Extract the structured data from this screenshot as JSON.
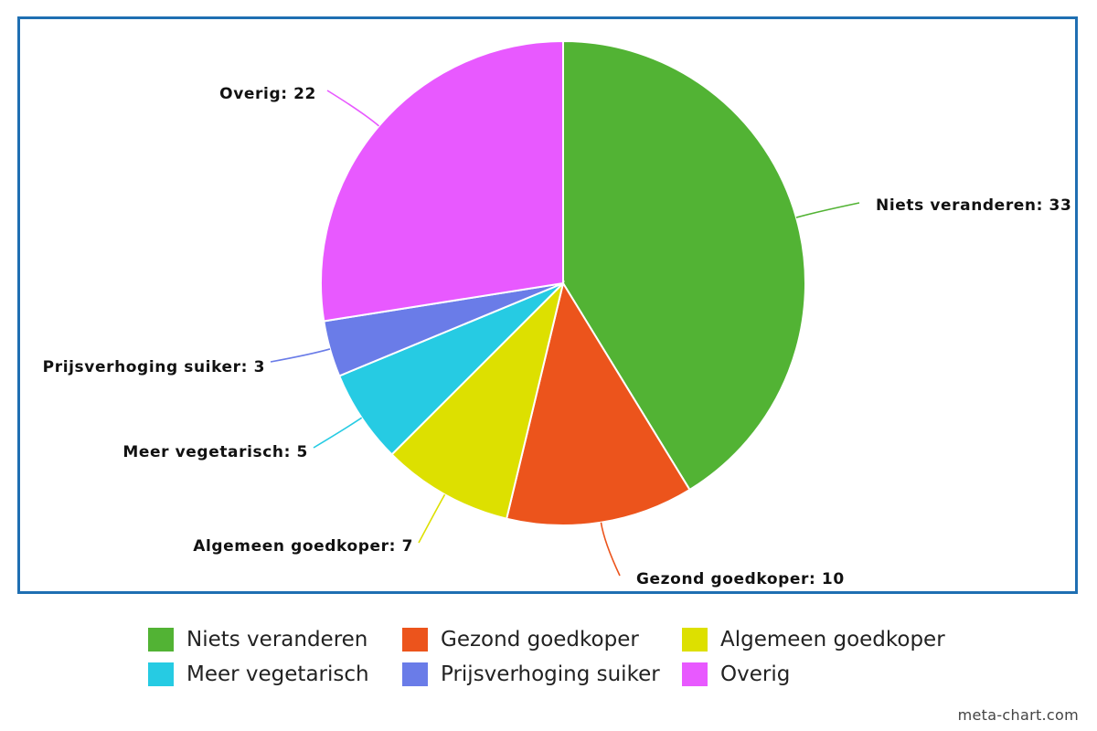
{
  "chart_data": {
    "type": "pie",
    "categories": [
      "Niets veranderen",
      "Gezond goedkoper",
      "Algemeen goedkoper",
      "Meer vegetarisch",
      "Prijsverhoging suiker",
      "Overig"
    ],
    "values": [
      33,
      10,
      7,
      5,
      3,
      22
    ],
    "colors": [
      "#52b334",
      "#ec541c",
      "#dde000",
      "#26cbe3",
      "#6a7ce8",
      "#e859ff"
    ],
    "data_labels": [
      "Niets veranderen: 33",
      "Gezond goedkoper: 10",
      "Algemeen goedkoper: 7",
      "Meer vegetarisch: 5",
      "Prijsverhoging suiker: 3",
      "Overig: 22"
    ],
    "legend_placement": "bottom",
    "frame_color": "#1f6fb2"
  },
  "credit": "meta-chart.com"
}
